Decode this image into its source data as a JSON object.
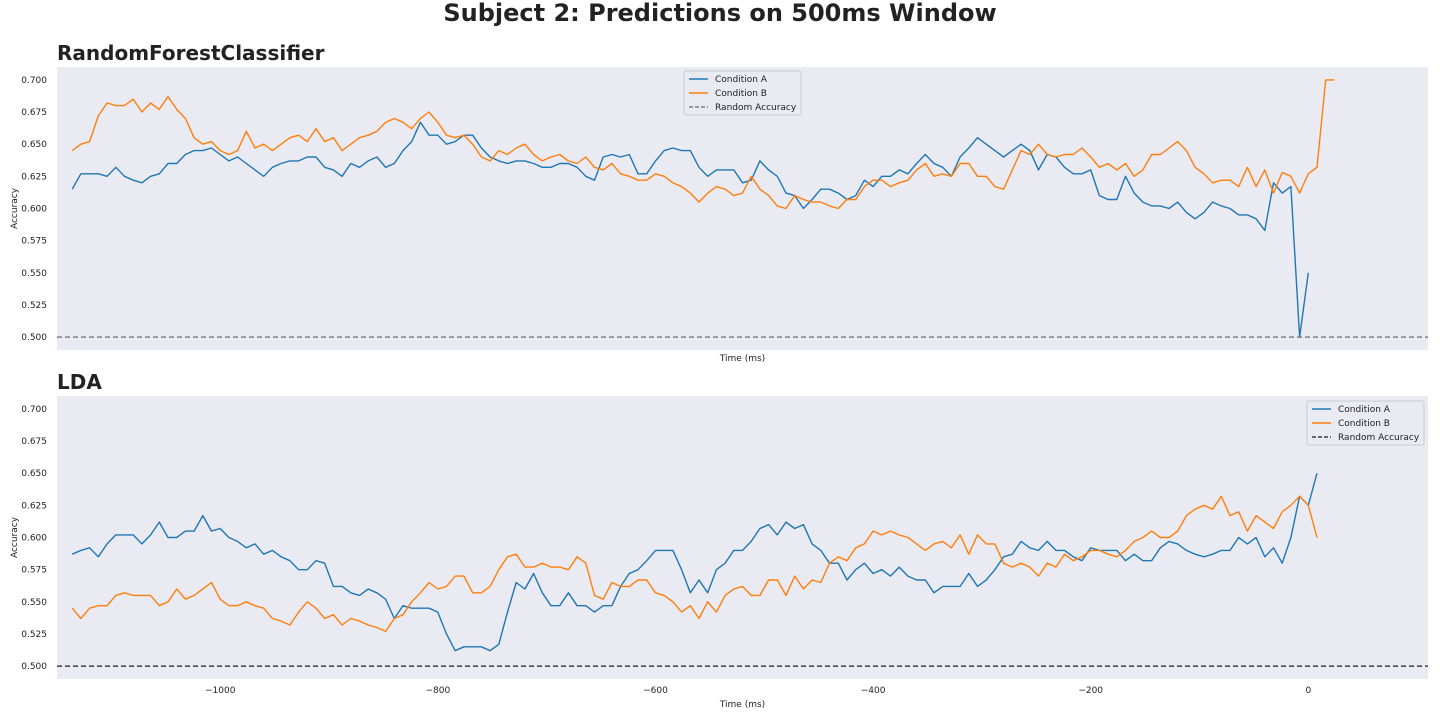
{
  "suptitle": "Subject 2: Predictions on 500ms Window",
  "colors": {
    "condition_a": "#1f77b4",
    "condition_b": "#ff7f0e",
    "random_top": "#808080",
    "random_bottom": "#404040",
    "panel_bg": "#eaeaf2"
  },
  "chart_data": [
    {
      "type": "line",
      "title": "RandomForestClassifier",
      "xlabel": "Time (ms)",
      "ylabel": "Accuracy",
      "xlim": [
        -1150,
        110
      ],
      "ylim": [
        0.49,
        0.71
      ],
      "yticks": [
        0.5,
        0.525,
        0.55,
        0.575,
        0.6,
        0.625,
        0.65,
        0.675,
        0.7
      ],
      "xticks": [],
      "grid": false,
      "legend": "top-center",
      "series": [
        {
          "name": "Condition A",
          "x_start": -1136,
          "x_step": 8,
          "values": [
            0.615,
            0.627,
            0.627,
            0.627,
            0.625,
            0.632,
            0.625,
            0.622,
            0.62,
            0.625,
            0.627,
            0.635,
            0.635,
            0.642,
            0.645,
            0.645,
            0.647,
            0.642,
            0.637,
            0.64,
            0.635,
            0.63,
            0.625,
            0.632,
            0.635,
            0.637,
            0.637,
            0.64,
            0.64,
            0.632,
            0.63,
            0.625,
            0.635,
            0.632,
            0.637,
            0.64,
            0.632,
            0.635,
            0.645,
            0.652,
            0.667,
            0.657,
            0.657,
            0.65,
            0.652,
            0.657,
            0.657,
            0.647,
            0.64,
            0.637,
            0.635,
            0.637,
            0.637,
            0.635,
            0.632,
            0.632,
            0.635,
            0.635,
            0.632,
            0.625,
            0.622,
            0.64,
            0.642,
            0.64,
            0.642,
            0.627,
            0.627,
            0.637,
            0.645,
            0.647,
            0.645,
            0.645,
            0.632,
            0.625,
            0.63,
            0.63,
            0.63,
            0.62,
            0.622,
            0.637,
            0.63,
            0.625,
            0.612,
            0.61,
            0.6,
            0.607,
            0.615,
            0.615,
            0.612,
            0.607,
            0.61,
            0.622,
            0.617,
            0.625,
            0.625,
            0.63,
            0.627,
            0.635,
            0.642,
            0.635,
            0.632,
            0.625,
            0.64,
            0.647,
            0.655,
            0.65,
            0.645,
            0.64,
            0.645,
            0.65,
            0.645,
            0.63,
            0.642,
            0.64,
            0.632,
            0.627,
            0.627,
            0.63,
            0.61,
            0.607,
            0.607,
            0.625,
            0.612,
            0.605,
            0.602,
            0.602,
            0.6,
            0.605,
            0.597,
            0.592,
            0.597,
            0.605,
            0.602,
            0.6,
            0.595,
            0.595,
            0.592,
            0.583,
            0.62,
            0.612,
            0.617,
            0.5,
            0.55
          ]
        },
        {
          "name": "Condition B",
          "x_start": -1136,
          "x_step": 8,
          "values": [
            0.645,
            0.65,
            0.652,
            0.672,
            0.682,
            0.68,
            0.68,
            0.685,
            0.675,
            0.682,
            0.677,
            0.687,
            0.677,
            0.67,
            0.655,
            0.65,
            0.652,
            0.645,
            0.642,
            0.645,
            0.66,
            0.647,
            0.65,
            0.645,
            0.65,
            0.655,
            0.657,
            0.652,
            0.662,
            0.652,
            0.655,
            0.645,
            0.65,
            0.655,
            0.657,
            0.66,
            0.667,
            0.67,
            0.667,
            0.662,
            0.67,
            0.675,
            0.667,
            0.657,
            0.655,
            0.657,
            0.65,
            0.64,
            0.637,
            0.645,
            0.642,
            0.647,
            0.65,
            0.642,
            0.637,
            0.64,
            0.642,
            0.637,
            0.635,
            0.64,
            0.632,
            0.63,
            0.635,
            0.627,
            0.625,
            0.622,
            0.622,
            0.627,
            0.625,
            0.62,
            0.617,
            0.612,
            0.605,
            0.612,
            0.617,
            0.615,
            0.61,
            0.612,
            0.625,
            0.615,
            0.61,
            0.602,
            0.6,
            0.61,
            0.607,
            0.605,
            0.605,
            0.602,
            0.6,
            0.607,
            0.607,
            0.617,
            0.622,
            0.622,
            0.617,
            0.62,
            0.622,
            0.63,
            0.635,
            0.625,
            0.627,
            0.625,
            0.635,
            0.635,
            0.625,
            0.625,
            0.617,
            0.615,
            0.63,
            0.645,
            0.642,
            0.65,
            0.642,
            0.64,
            0.642,
            0.642,
            0.647,
            0.64,
            0.632,
            0.635,
            0.63,
            0.635,
            0.625,
            0.63,
            0.642,
            0.642,
            0.647,
            0.652,
            0.645,
            0.632,
            0.627,
            0.62,
            0.622,
            0.622,
            0.617,
            0.632,
            0.617,
            0.63,
            0.612,
            0.628,
            0.625,
            0.612,
            0.627,
            0.632,
            0.7,
            0.7
          ]
        },
        {
          "name": "Random Accuracy",
          "constant": 0.5,
          "style": "dashed"
        }
      ]
    },
    {
      "type": "line",
      "title": "LDA",
      "xlabel": "Time (ms)",
      "ylabel": "Accuracy",
      "xlim": [
        -1150,
        110
      ],
      "ylim": [
        0.49,
        0.71
      ],
      "yticks": [
        0.5,
        0.525,
        0.55,
        0.575,
        0.6,
        0.625,
        0.65,
        0.675,
        0.7
      ],
      "xticks": [
        -1000,
        -800,
        -600,
        -400,
        -200,
        0
      ],
      "xtick_labels": [
        "−1000",
        "−800",
        "−600",
        "−400",
        "−200",
        "0"
      ],
      "grid": false,
      "legend": "top-right",
      "series": [
        {
          "name": "Condition A",
          "x_start": -1136,
          "x_step": 8,
          "values": [
            0.587,
            0.59,
            0.592,
            0.585,
            0.595,
            0.602,
            0.602,
            0.602,
            0.595,
            0.602,
            0.612,
            0.6,
            0.6,
            0.605,
            0.605,
            0.617,
            0.605,
            0.607,
            0.6,
            0.597,
            0.592,
            0.595,
            0.587,
            0.59,
            0.585,
            0.582,
            0.575,
            0.575,
            0.582,
            0.58,
            0.562,
            0.562,
            0.557,
            0.555,
            0.56,
            0.557,
            0.552,
            0.537,
            0.547,
            0.545,
            0.545,
            0.545,
            0.542,
            0.525,
            0.512,
            0.515,
            0.515,
            0.515,
            0.512,
            0.517,
            0.542,
            0.565,
            0.56,
            0.572,
            0.557,
            0.547,
            0.547,
            0.557,
            0.547,
            0.547,
            0.542,
            0.547,
            0.547,
            0.562,
            0.572,
            0.575,
            0.582,
            0.59,
            0.59,
            0.59,
            0.575,
            0.557,
            0.567,
            0.557,
            0.575,
            0.58,
            0.59,
            0.59,
            0.597,
            0.607,
            0.61,
            0.602,
            0.612,
            0.607,
            0.61,
            0.595,
            0.59,
            0.58,
            0.58,
            0.567,
            0.575,
            0.58,
            0.572,
            0.575,
            0.57,
            0.577,
            0.57,
            0.567,
            0.567,
            0.557,
            0.562,
            0.562,
            0.562,
            0.572,
            0.562,
            0.567,
            0.575,
            0.585,
            0.587,
            0.597,
            0.592,
            0.59,
            0.597,
            0.59,
            0.59,
            0.585,
            0.582,
            0.592,
            0.59,
            0.59,
            0.59,
            0.582,
            0.587,
            0.582,
            0.582,
            0.592,
            0.597,
            0.595,
            0.59,
            0.587,
            0.585,
            0.587,
            0.59,
            0.59,
            0.6,
            0.595,
            0.6,
            0.585,
            0.592,
            0.58,
            0.6,
            0.632,
            0.625,
            0.65
          ]
        },
        {
          "name": "Condition B",
          "x_start": -1136,
          "x_step": 8,
          "values": [
            0.545,
            0.537,
            0.545,
            0.547,
            0.547,
            0.555,
            0.557,
            0.555,
            0.555,
            0.555,
            0.547,
            0.55,
            0.56,
            0.552,
            0.555,
            0.56,
            0.565,
            0.552,
            0.547,
            0.547,
            0.55,
            0.547,
            0.545,
            0.537,
            0.535,
            0.532,
            0.542,
            0.55,
            0.545,
            0.537,
            0.54,
            0.532,
            0.537,
            0.535,
            0.532,
            0.53,
            0.527,
            0.537,
            0.54,
            0.55,
            0.557,
            0.565,
            0.56,
            0.562,
            0.57,
            0.57,
            0.557,
            0.557,
            0.562,
            0.575,
            0.585,
            0.587,
            0.577,
            0.577,
            0.58,
            0.577,
            0.577,
            0.575,
            0.585,
            0.58,
            0.555,
            0.552,
            0.565,
            0.562,
            0.562,
            0.567,
            0.567,
            0.557,
            0.555,
            0.55,
            0.542,
            0.547,
            0.537,
            0.55,
            0.542,
            0.555,
            0.56,
            0.562,
            0.555,
            0.555,
            0.567,
            0.567,
            0.555,
            0.57,
            0.56,
            0.567,
            0.565,
            0.58,
            0.585,
            0.582,
            0.592,
            0.595,
            0.605,
            0.602,
            0.605,
            0.602,
            0.6,
            0.595,
            0.59,
            0.595,
            0.597,
            0.592,
            0.602,
            0.587,
            0.602,
            0.595,
            0.595,
            0.58,
            0.577,
            0.58,
            0.577,
            0.57,
            0.58,
            0.577,
            0.587,
            0.582,
            0.585,
            0.59,
            0.59,
            0.587,
            0.585,
            0.59,
            0.597,
            0.6,
            0.605,
            0.6,
            0.6,
            0.605,
            0.617,
            0.622,
            0.625,
            0.622,
            0.632,
            0.617,
            0.62,
            0.605,
            0.617,
            0.612,
            0.607,
            0.62,
            0.625,
            0.632,
            0.625,
            0.6
          ]
        },
        {
          "name": "Random Accuracy",
          "constant": 0.5,
          "style": "dashed"
        }
      ]
    }
  ]
}
